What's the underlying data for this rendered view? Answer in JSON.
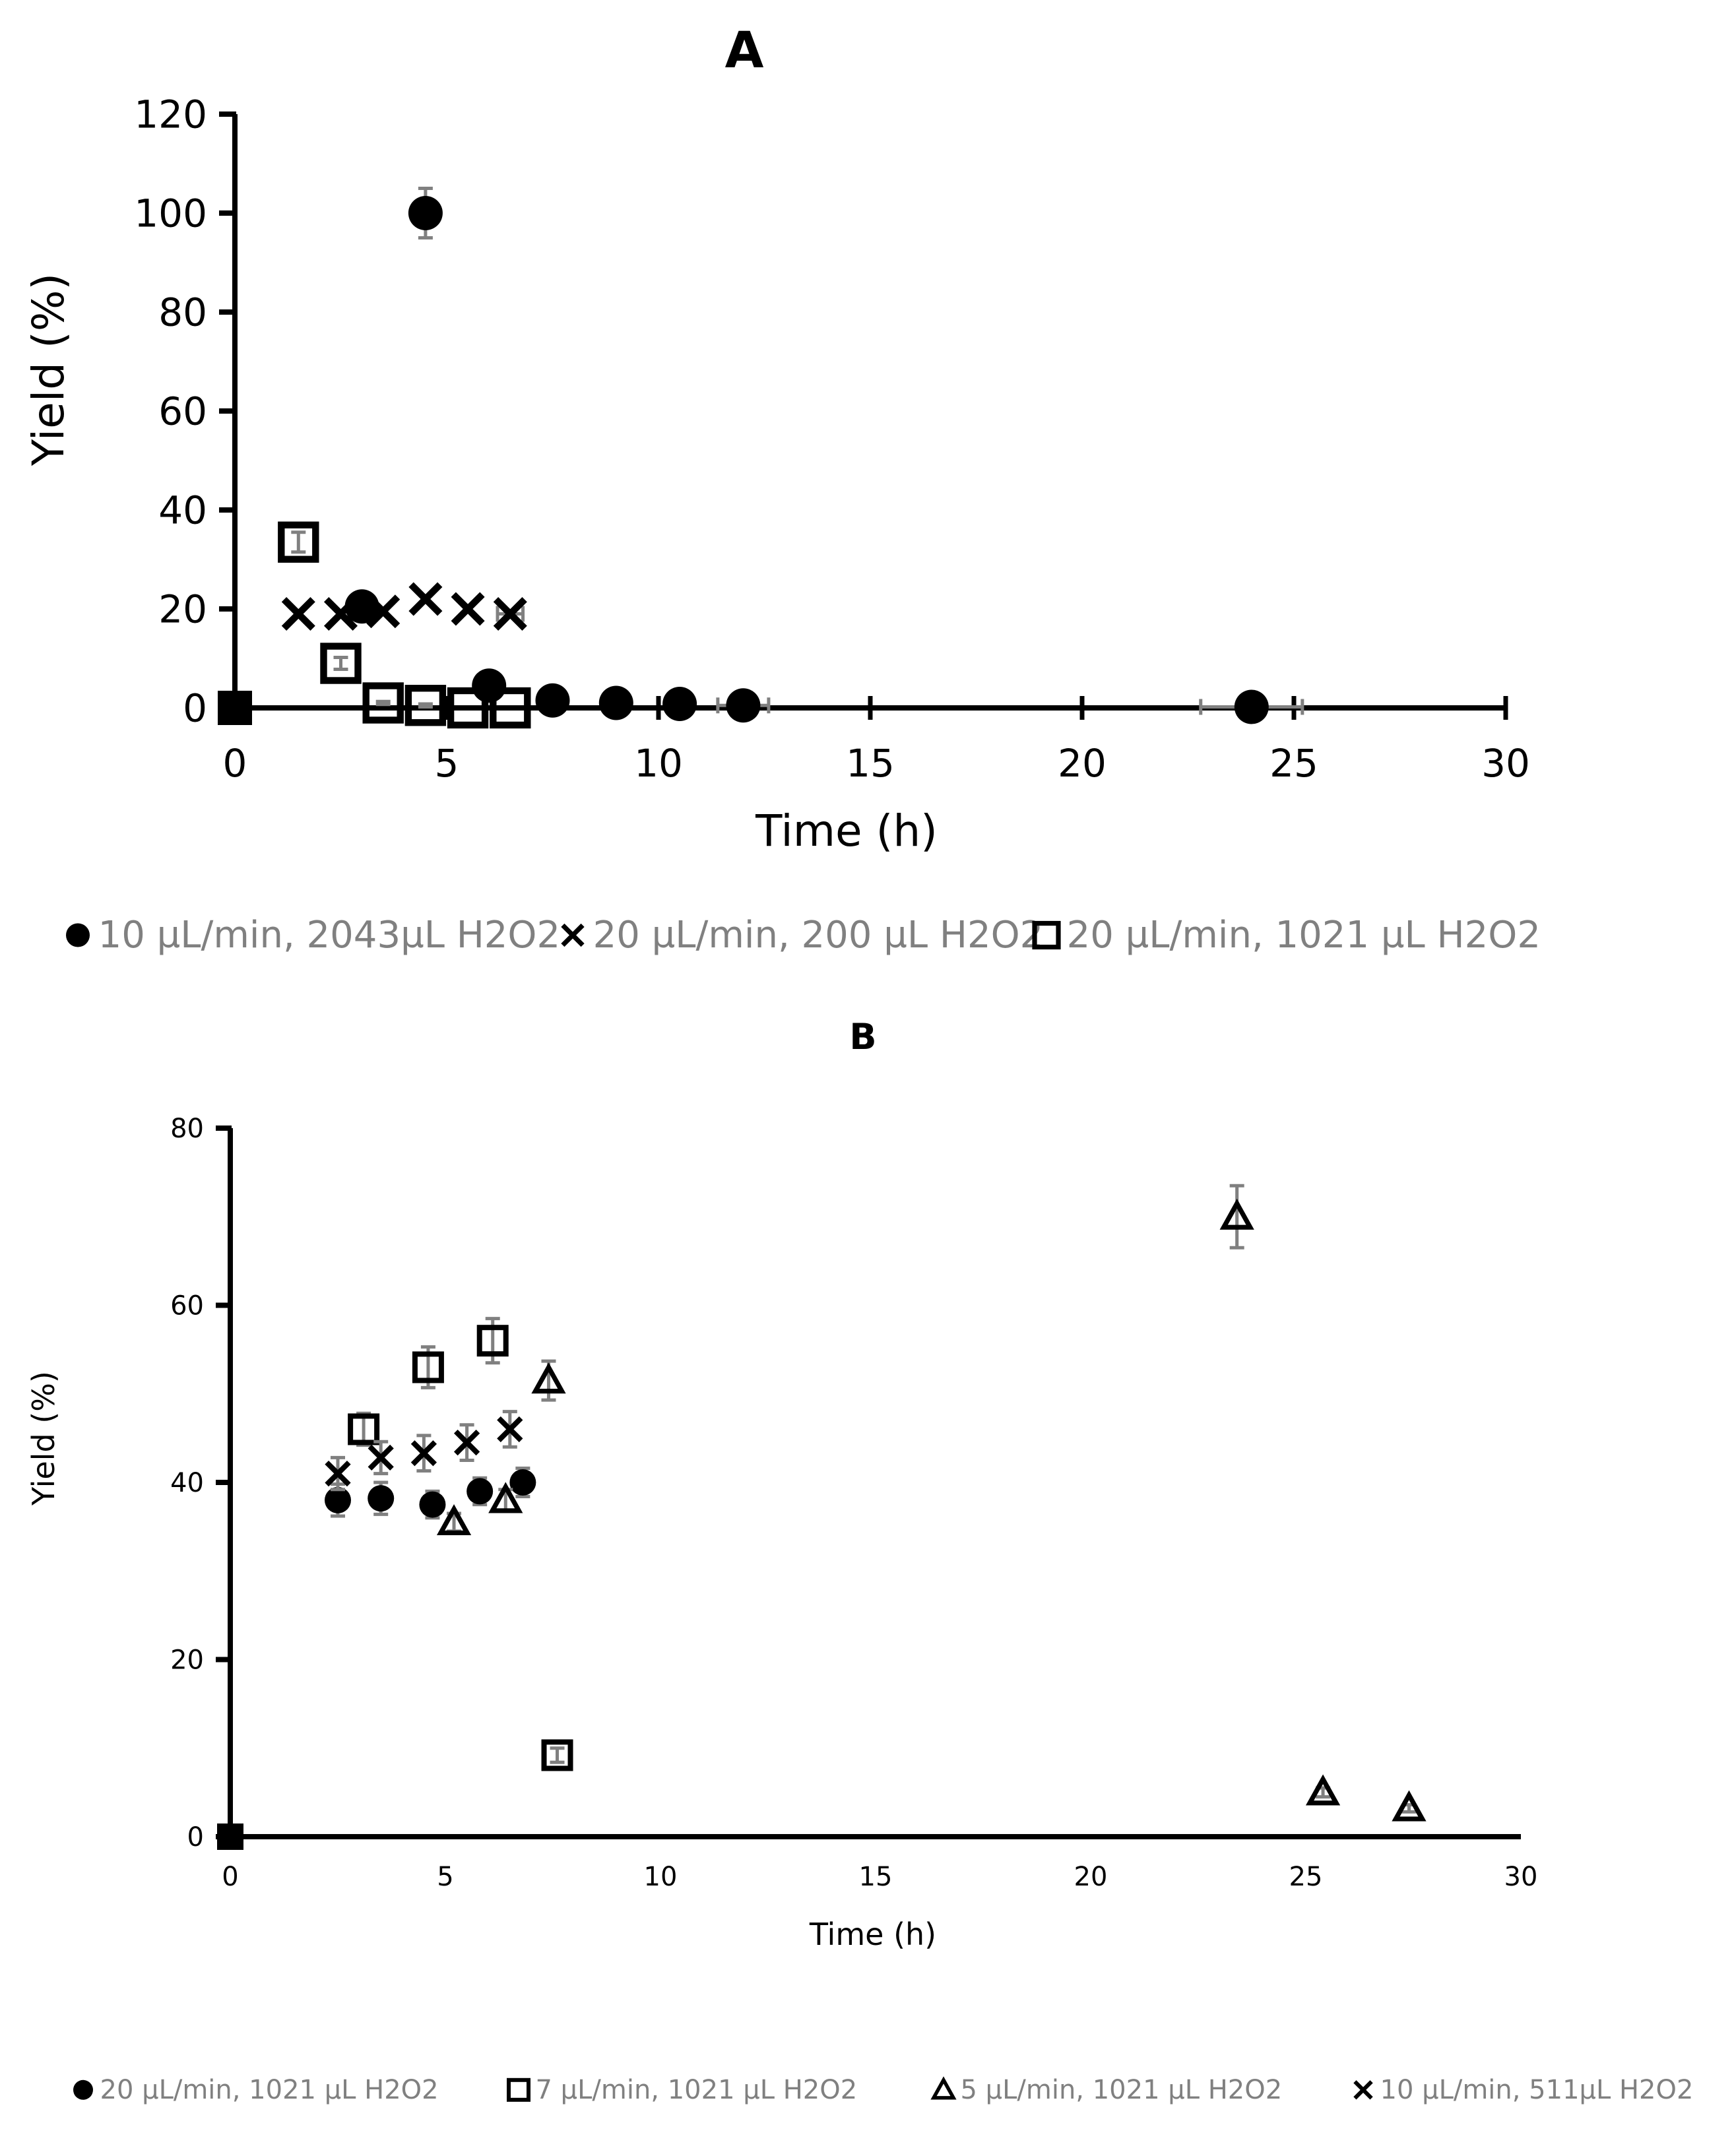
{
  "chart_data": [
    {
      "panel": "A",
      "type": "scatter",
      "title": "A",
      "xlabel": "Time (h)",
      "ylabel": "Yield (%)",
      "xlim": [
        0,
        30
      ],
      "ylim": [
        0,
        120
      ],
      "xticks": [
        0,
        5,
        10,
        15,
        20,
        25,
        30
      ],
      "yticks": [
        0,
        20,
        40,
        60,
        80,
        100,
        120
      ],
      "legend_position": "bottom",
      "series": [
        {
          "name": "10 µL/min, 2043µL H2O2",
          "marker": "filled-circle",
          "x": [
            0,
            3,
            4.5,
            6,
            7.5,
            9,
            10.5,
            12,
            24
          ],
          "y": [
            0,
            20.5,
            100,
            4.5,
            1.5,
            1,
            0.8,
            0.5,
            0.2
          ],
          "yerr": [
            0,
            1,
            5,
            0.5,
            0.3,
            0.3,
            0.3,
            0.3,
            0
          ],
          "xerr": [
            0,
            0,
            0,
            0,
            0,
            0,
            0,
            0.6,
            1.2
          ]
        },
        {
          "name": "20 µL/min, 200 µL H2O2",
          "marker": "x",
          "x": [
            1.5,
            2.5,
            3.5,
            4.5,
            5.5,
            6.5
          ],
          "y": [
            19,
            19,
            19.5,
            22,
            20,
            19
          ],
          "yerr": [
            0,
            0,
            0,
            0,
            0,
            0
          ],
          "xerr": [
            0,
            0,
            0,
            0,
            0,
            0.3
          ]
        },
        {
          "name": "20 µL/min, 1021 µL H2O2",
          "marker": "open-square",
          "x": [
            0,
            1.5,
            2.5,
            3.5,
            4.5,
            5.5,
            6.5
          ],
          "y": [
            0,
            33.5,
            9,
            1,
            0.5,
            0,
            0
          ],
          "yerr": [
            0,
            2,
            1.2,
            0.3,
            0.3,
            0,
            0
          ],
          "xerr": [
            0,
            0,
            0,
            0,
            0,
            0,
            0
          ]
        }
      ]
    },
    {
      "panel": "B",
      "type": "scatter",
      "title": "B",
      "xlabel": "Time (h)",
      "ylabel": "Yield (%)",
      "xlim": [
        0,
        30
      ],
      "ylim": [
        0,
        80
      ],
      "xticks": [
        0,
        5,
        10,
        15,
        20,
        25,
        30
      ],
      "yticks": [
        0,
        20,
        40,
        60,
        80
      ],
      "legend_position": "bottom",
      "series": [
        {
          "name": "20 µL/min, 1021 µL H2O2",
          "marker": "filled-circle",
          "x": [
            0,
            2.5,
            3.5,
            4.7,
            5.8,
            6.8
          ],
          "y": [
            0,
            38,
            38.2,
            37.5,
            39,
            40
          ],
          "yerr": [
            0,
            1.8,
            1.8,
            1.5,
            1.5,
            1.6
          ]
        },
        {
          "name": "7 µL/min, 1021 µL H2O2",
          "marker": "open-square",
          "x": [
            3.1,
            4.6,
            6.1,
            7.6
          ],
          "y": [
            46,
            53,
            56,
            9.2
          ],
          "yerr": [
            1.8,
            2.3,
            2.5,
            0.8
          ]
        },
        {
          "name": "5 µL/min, 1021 µL H2O2",
          "marker": "open-triangle",
          "x": [
            5.2,
            6.4,
            7.4,
            23.4,
            25.4,
            27.4
          ],
          "y": [
            35.5,
            38,
            51.5,
            70,
            5,
            3.2
          ],
          "yerr": [
            1,
            1.2,
            2.2,
            3.5,
            0.5,
            0.4
          ]
        },
        {
          "name": "10 µL/min, 511µL H2O2",
          "marker": "x",
          "x": [
            2.5,
            3.5,
            4.5,
            5.5,
            6.5
          ],
          "y": [
            41,
            42.8,
            43.3,
            44.5,
            46
          ],
          "yerr": [
            1.8,
            1.8,
            2,
            2,
            2
          ]
        }
      ]
    }
  ]
}
